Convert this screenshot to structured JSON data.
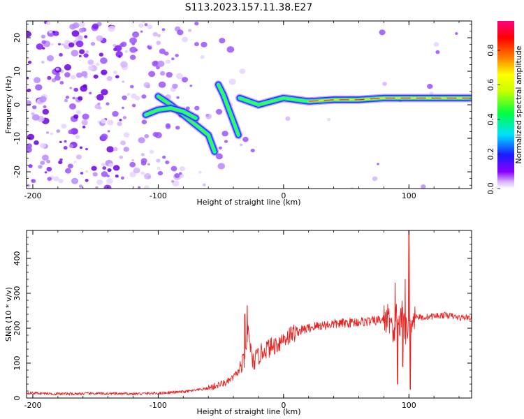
{
  "figure": {
    "title": "S113.2023.157.11.38.E27"
  },
  "colorbar": {
    "label": "Normalized spectral amplitude",
    "ticks": [
      "0.0",
      "0.2",
      "0.4",
      "0.6",
      "0.8"
    ],
    "tick_values": [
      0.0,
      0.2,
      0.4,
      0.6,
      0.8
    ],
    "range": [
      0.0,
      0.97
    ],
    "colormap": [
      "#ffffff",
      "#8a00ff",
      "#1a1aff",
      "#00e0ff",
      "#00ff40",
      "#c8ff00",
      "#ffff00",
      "#ff8000",
      "#ff0000",
      "#ff0080"
    ]
  },
  "chart_data": [
    {
      "type": "heatmap",
      "title": "",
      "xlabel": "Height of straight line (km)",
      "ylabel": "Frequency (Hz)",
      "xlim": [
        -205,
        150
      ],
      "ylim": [
        -25,
        25
      ],
      "xticks": [
        -200,
        -100,
        0,
        100
      ],
      "xtick_labels": [
        "-200",
        "-100",
        "0",
        "100"
      ],
      "yticks": [
        -20,
        -10,
        0,
        10,
        20
      ],
      "ytick_labels": [
        "-20",
        "-10",
        "0",
        "10",
        "20"
      ],
      "grid": false,
      "ridge": {
        "description_values_only": true,
        "segments": [
          {
            "x": [
              -100,
              -90,
              -80,
              -70,
              -60,
              -55
            ],
            "y": [
              2.5,
              0,
              -3,
              -6,
              -9,
              -14
            ]
          },
          {
            "x": [
              -110,
              -100,
              -90,
              -80,
              -70
            ],
            "y": [
              -3,
              -1.5,
              -1,
              -2,
              -4
            ]
          },
          {
            "x": [
              -52,
              -48,
              -44,
              -40,
              -36
            ],
            "y": [
              6,
              3,
              -1,
              -5,
              -9
            ]
          },
          {
            "x": [
              -35,
              -20,
              0,
              20,
              40,
              60,
              80,
              100,
              120,
              150
            ],
            "y": [
              2,
              0,
              2,
              1,
              1.5,
              1.5,
              2,
              2,
              2,
              2
            ]
          }
        ]
      }
    },
    {
      "type": "line",
      "title": "",
      "xlabel": "Height of straight line (km)",
      "ylabel": "SNR (10 * v/v)",
      "xlim": [
        -205,
        150
      ],
      "ylim": [
        0,
        480
      ],
      "xticks": [
        -200,
        -100,
        0,
        100
      ],
      "xtick_labels": [
        "-200",
        "-100",
        "0",
        "100"
      ],
      "yticks": [
        0,
        100,
        200,
        300,
        400
      ],
      "ytick_labels": [
        "0",
        "100",
        "200",
        "300",
        "400"
      ],
      "grid": false,
      "series": [
        {
          "color": "#e8221f",
          "x": [
            -205,
            -180,
            -150,
            -120,
            -100,
            -90,
            -80,
            -70,
            -60,
            -50,
            -45,
            -40,
            -35,
            -30,
            -28,
            -25,
            -20,
            -15,
            -10,
            -5,
            0,
            5,
            10,
            15,
            20,
            25,
            30,
            35,
            40,
            50,
            60,
            70,
            80,
            85,
            88,
            90,
            93,
            95,
            98,
            100,
            102,
            105,
            110,
            120,
            130,
            140,
            150
          ],
          "values": [
            15,
            12,
            13,
            12,
            14,
            16,
            18,
            22,
            28,
            40,
            45,
            60,
            80,
            120,
            200,
            100,
            120,
            140,
            145,
            155,
            170,
            180,
            190,
            195,
            200,
            205,
            208,
            210,
            212,
            215,
            218,
            220,
            225,
            230,
            150,
            240,
            200,
            260,
            180,
            220,
            230,
            235,
            230,
            235,
            238,
            230,
            232
          ],
          "spikes": [
            {
              "x": -29,
              "y": 265
            },
            {
              "x": -31,
              "y": 240
            },
            {
              "x": 89,
              "y": 330
            },
            {
              "x": 91,
              "y": 40
            },
            {
              "x": 97,
              "y": 340
            },
            {
              "x": 100,
              "y": 480
            },
            {
              "x": 101,
              "y": 25
            },
            {
              "x": 95,
              "y": 90
            }
          ]
        }
      ]
    }
  ]
}
